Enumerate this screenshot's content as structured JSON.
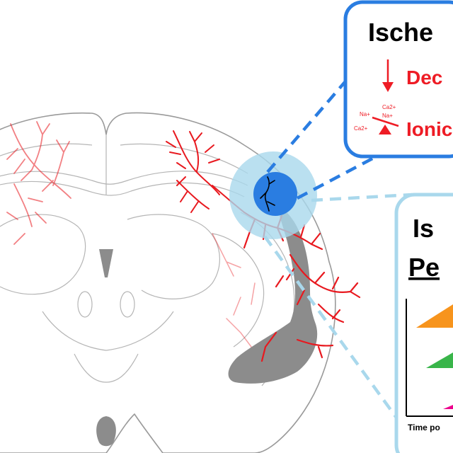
{
  "ischemia_box": {
    "title": "Ische",
    "items": [
      {
        "label": "Dec",
        "icon": "down-arrow-icon"
      },
      {
        "label": "Ionic",
        "icon": "ion-balance-icon"
      }
    ],
    "ion_labels": [
      "Ca2+",
      "Na+",
      "Na+",
      "Ca2+"
    ],
    "border_color": "#2a7de1"
  },
  "second_box": {
    "title": "Is",
    "subtitle": "Pe",
    "axis_label": "Time po",
    "bar_colors": [
      "#f7941d",
      "#39b54a",
      "#ec008c"
    ],
    "border_color": "#a9d8ec"
  },
  "colors": {
    "vessel": "#e8191f",
    "core": "#2a7de1",
    "penumbra": "#a9d8ec",
    "ventricle": "#8c8c8c"
  }
}
